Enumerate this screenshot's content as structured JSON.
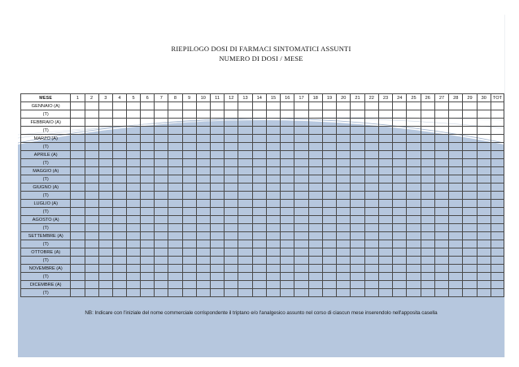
{
  "document": {
    "title_line1": "RIEPILOGO  DOSI DI FARMACI SINTOMATICI ASSUNTI",
    "title_line2": "NUMERO DI DOSI / MESE",
    "table": {
      "header_first": "MESE",
      "day_headers": [
        "1",
        "2",
        "3",
        "4",
        "5",
        "6",
        "7",
        "8",
        "9",
        "10",
        "11",
        "12",
        "13",
        "14",
        "15",
        "16",
        "17",
        "18",
        "19",
        "20",
        "21",
        "22",
        "23",
        "24",
        "25",
        "26",
        "27",
        "28",
        "29",
        "30"
      ],
      "header_total": "TOT",
      "rows": [
        "GENNAIO (A)",
        "(T)",
        "FEBBRAIO (A)",
        "(T)",
        "MARZO (A)",
        "(T)",
        "APRILE (A)",
        "(T)",
        "MAGGIO (A)",
        "(T)",
        "GIUGNO (A)",
        "(T)",
        "LUGLIO (A)",
        "(T)",
        "AGOSTO (A)",
        "(T)",
        "SETTEMBRE (A)",
        "(T)",
        "OTTOBRE (A)",
        "(T)",
        "NOVEMBRE (A)",
        "(T)",
        "DICEMBRE (A)",
        "(T)"
      ]
    },
    "note": "NB: Indicare con l'iniziale del nome commerciale corrispondente il triptano e/o l'analgesico assunto nel corso di ciascun mese inserendolo nell'apposita casella"
  },
  "colors": {
    "fill": "#b6c7de",
    "grid": "#4a4a4a"
  }
}
